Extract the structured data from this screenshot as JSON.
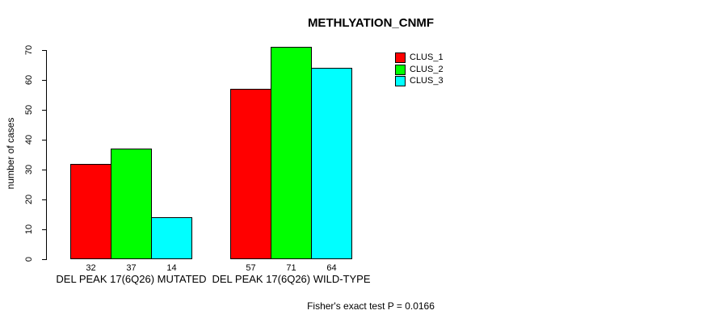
{
  "chart_data": {
    "type": "bar",
    "title": "METHLYATION_CNMF",
    "ylabel": "number of cases",
    "xlabel": "",
    "ylim": [
      0,
      70
    ],
    "yticks": [
      0,
      10,
      20,
      30,
      40,
      50,
      60,
      70
    ],
    "grid": false,
    "categories": [
      "DEL PEAK 17(6Q26) MUTATED",
      "DEL PEAK 17(6Q26) WILD-TYPE"
    ],
    "series": [
      {
        "name": "CLUS_1",
        "color": "#ff0000",
        "values": [
          32,
          57
        ]
      },
      {
        "name": "CLUS_2",
        "color": "#00ff00",
        "values": [
          37,
          71
        ]
      },
      {
        "name": "CLUS_3",
        "color": "#00ffff",
        "values": [
          14,
          64
        ]
      }
    ],
    "bar_value_labels": [
      [
        32,
        37,
        14
      ],
      [
        57,
        71,
        64
      ]
    ],
    "legend": {
      "position": "top-right",
      "entries": [
        "CLUS_1",
        "CLUS_2",
        "CLUS_3"
      ]
    },
    "annotation": "Fisher's exact test P = 0.0166",
    "bar_border_color": "#000000",
    "axis_color": "#000000"
  }
}
